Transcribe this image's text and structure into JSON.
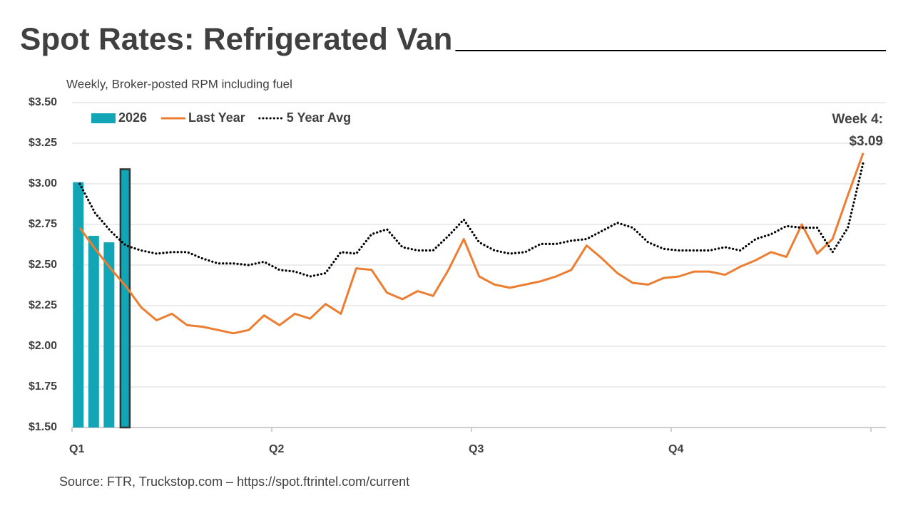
{
  "chart_data": {
    "type": "bar_line",
    "title": "Spot Rates: Refrigerated Van",
    "subtitle": "Weekly, Broker-posted RPM including fuel",
    "source": "Source: FTR, Truckstop.com – https://spot.ftrintel.com/current",
    "categories": [
      "Q1",
      null,
      null,
      null,
      null,
      null,
      null,
      null,
      null,
      null,
      null,
      null,
      null,
      "Q2",
      null,
      null,
      null,
      null,
      null,
      null,
      null,
      null,
      null,
      null,
      null,
      null,
      "Q3",
      null,
      null,
      null,
      null,
      null,
      null,
      null,
      null,
      null,
      null,
      null,
      null,
      "Q4",
      null,
      null,
      null,
      null,
      null,
      null,
      null,
      null,
      null,
      null,
      null,
      null
    ],
    "series": [
      {
        "name": "2026",
        "type": "bar",
        "color": "#12a5b5",
        "highlight_index": 3,
        "highlight_color": "#333333",
        "values": [
          3.01,
          2.68,
          2.64,
          3.09,
          null,
          null,
          null,
          null,
          null,
          null,
          null,
          null,
          null,
          null,
          null,
          null,
          null,
          null,
          null,
          null,
          null,
          null,
          null,
          null,
          null,
          null,
          null,
          null,
          null,
          null,
          null,
          null,
          null,
          null,
          null,
          null,
          null,
          null,
          null,
          null,
          null,
          null,
          null,
          null,
          null,
          null,
          null,
          null,
          null,
          null,
          null,
          null
        ]
      },
      {
        "name": "Last Year",
        "type": "line",
        "color": "#ed7d31",
        "style": "solid",
        "values": [
          2.73,
          2.6,
          2.48,
          2.37,
          2.24,
          2.16,
          2.2,
          2.13,
          2.12,
          2.1,
          2.08,
          2.1,
          2.19,
          2.13,
          2.2,
          2.17,
          2.26,
          2.2,
          2.48,
          2.47,
          2.33,
          2.29,
          2.34,
          2.31,
          2.47,
          2.66,
          2.43,
          2.38,
          2.36,
          2.38,
          2.4,
          2.43,
          2.47,
          2.62,
          2.54,
          2.45,
          2.39,
          2.38,
          2.42,
          2.43,
          2.46,
          2.46,
          2.44,
          2.49,
          2.53,
          2.58,
          2.55,
          2.75,
          2.57,
          2.66,
          2.93,
          3.19
        ]
      },
      {
        "name": "5 Year Avg",
        "type": "line",
        "color": "#000000",
        "style": "dotted",
        "values": [
          3.0,
          2.82,
          2.71,
          2.62,
          2.59,
          2.57,
          2.58,
          2.58,
          2.54,
          2.51,
          2.51,
          2.5,
          2.52,
          2.47,
          2.46,
          2.43,
          2.45,
          2.58,
          2.57,
          2.69,
          2.72,
          2.61,
          2.59,
          2.59,
          2.68,
          2.78,
          2.64,
          2.59,
          2.57,
          2.58,
          2.63,
          2.63,
          2.65,
          2.66,
          2.71,
          2.76,
          2.73,
          2.64,
          2.6,
          2.59,
          2.59,
          2.59,
          2.61,
          2.59,
          2.66,
          2.69,
          2.74,
          2.73,
          2.73,
          2.58,
          2.73,
          3.13
        ]
      }
    ],
    "ylim": [
      1.5,
      3.5
    ],
    "yticks": [
      {
        "value": 1.5,
        "label": "$1.50"
      },
      {
        "value": 1.75,
        "label": "$1.75"
      },
      {
        "value": 2.0,
        "label": "$2.00"
      },
      {
        "value": 2.25,
        "label": "$2.25"
      },
      {
        "value": 2.5,
        "label": "$2.50"
      },
      {
        "value": 2.75,
        "label": "$2.75"
      },
      {
        "value": 3.0,
        "label": "$3.00"
      },
      {
        "value": 3.25,
        "label": "$3.25"
      },
      {
        "value": 3.5,
        "label": "$3.50"
      }
    ],
    "grid": true,
    "legend": "upper left",
    "annotation": [
      "Week 4:",
      "$3.09"
    ]
  }
}
